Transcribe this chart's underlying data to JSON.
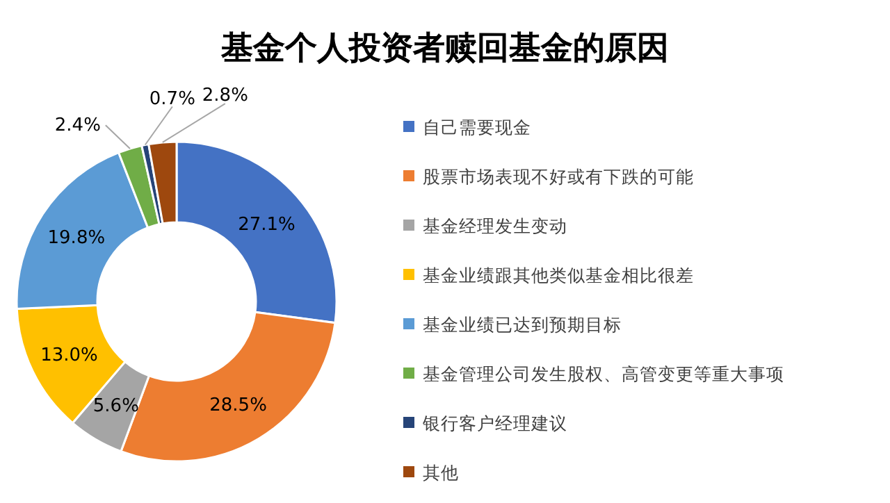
{
  "chart_data": {
    "type": "donut",
    "title": "基金个人投资者赎回基金的原因",
    "categories": [
      "自己需要现金",
      "股票市场表现不好或有下跌的可能",
      "基金经理发生变动",
      "基金业绩跟其他类似基金相比很差",
      "基金业绩已达到预期目标",
      "基金管理公司发生股权、高管变更等重大事项",
      "银行客户经理建议",
      "其他"
    ],
    "values": [
      27.1,
      28.5,
      5.6,
      13.0,
      19.8,
      2.4,
      0.7,
      2.8
    ],
    "value_labels": [
      "27.1%",
      "28.5%",
      "5.6%",
      "13.0%",
      "19.8%",
      "2.4%",
      "0.7%",
      "2.8%"
    ],
    "colors": [
      "#4472c4",
      "#ed7d31",
      "#a5a5a5",
      "#ffc000",
      "#5b9bd5",
      "#70ad47",
      "#264478",
      "#9e480e"
    ],
    "legend": "right"
  }
}
